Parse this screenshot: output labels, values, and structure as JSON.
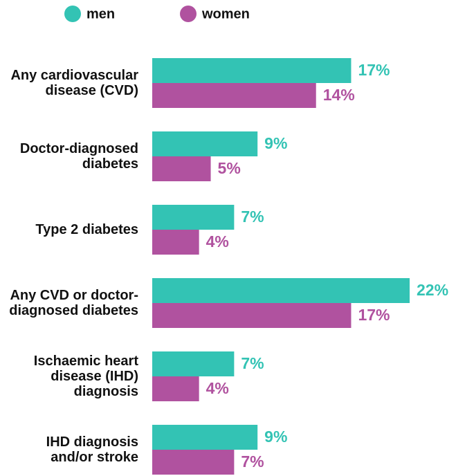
{
  "chart_data": {
    "type": "bar",
    "orientation": "horizontal",
    "categories": [
      "Any cardiovascular disease (CVD)",
      "Doctor-diagnosed diabetes",
      "Type 2 diabetes",
      "Any CVD or doctor-diagnosed diabetes",
      "Ischaemic heart disease (IHD) diagnosis",
      "IHD diagnosis and/or stroke"
    ],
    "series": [
      {
        "name": "men",
        "color": "#33c3b4",
        "values": [
          17,
          9,
          7,
          22,
          7,
          9
        ],
        "value_labels": [
          "17%",
          "9%",
          "7%",
          "22%",
          "7%",
          "9%"
        ]
      },
      {
        "name": "women",
        "color": "#b0529f",
        "values": [
          14,
          5,
          4,
          17,
          4,
          7
        ],
        "value_labels": [
          "14%",
          "5%",
          "4%",
          "17%",
          "4%",
          "7%"
        ]
      }
    ]
  }
}
